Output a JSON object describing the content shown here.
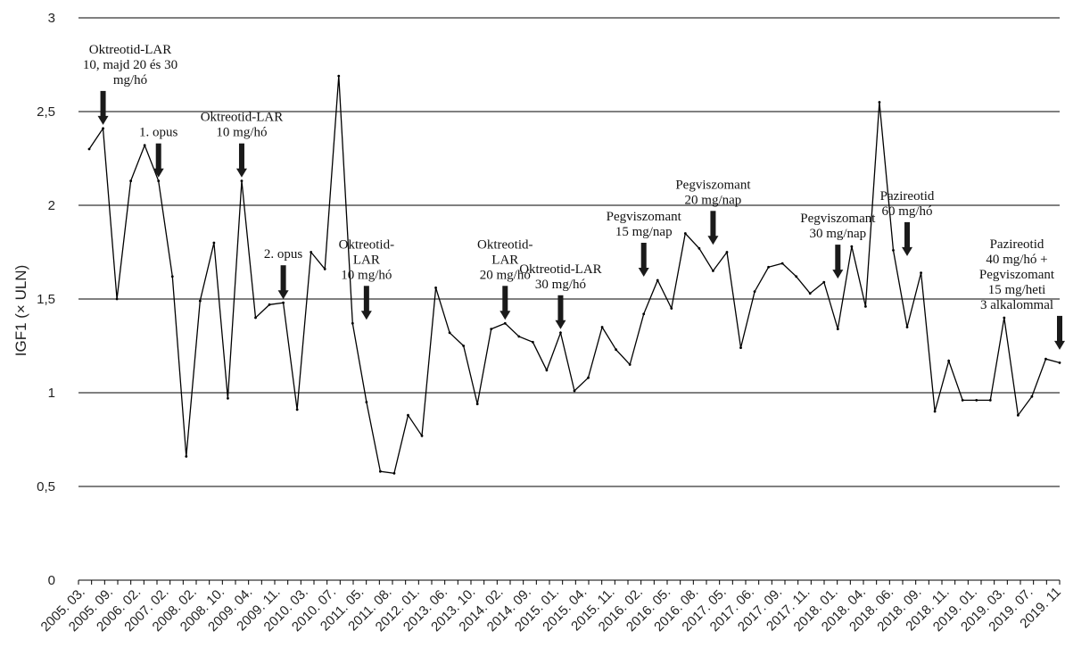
{
  "chart_data": {
    "type": "line",
    "title": "",
    "xlabel": "",
    "ylabel": "IGF1 (× ULN)",
    "ylim": [
      0,
      3
    ],
    "yticks": [
      "0",
      "0,5",
      "1",
      "1,5",
      "2",
      "2,5",
      "3"
    ],
    "grid": true,
    "legend": "none",
    "line_color": "#000000",
    "x_tick_labels": [
      "2005. 03.",
      "2005. 09.",
      "2006. 02.",
      "2007. 02.",
      "2008. 02.",
      "2008. 10.",
      "2009. 04.",
      "2009. 11.",
      "2010. 03.",
      "2010. 07.",
      "2011. 05.",
      "2011. 08.",
      "2012. 01.",
      "2013. 06.",
      "2013. 10.",
      "2014. 02.",
      "2014. 09.",
      "2015. 01.",
      "2015. 04.",
      "2015. 11.",
      "2016. 02.",
      "2016. 05.",
      "2016. 08.",
      "2017. 05.",
      "2017. 06.",
      "2017. 09.",
      "2017. 11.",
      "2018. 01.",
      "2018. 04.",
      "2018. 06.",
      "2018. 09.",
      "2018. 11.",
      "2019. 01.",
      "2019. 03.",
      "2019. 07.",
      "2019. 11"
    ],
    "values": [
      2.3,
      2.41,
      1.5,
      2.13,
      2.32,
      2.13,
      1.62,
      0.66,
      1.49,
      1.8,
      0.97,
      2.13,
      1.4,
      1.47,
      1.48,
      0.91,
      1.75,
      1.66,
      2.69,
      1.37,
      0.95,
      0.58,
      0.57,
      0.88,
      0.77,
      1.56,
      1.32,
      1.25,
      0.94,
      1.34,
      1.37,
      1.3,
      1.27,
      1.12,
      1.32,
      1.01,
      1.08,
      1.35,
      1.23,
      1.15,
      1.42,
      1.6,
      1.45,
      1.85,
      1.77,
      1.65,
      1.75,
      1.24,
      1.54,
      1.67,
      1.69,
      1.62,
      1.53,
      1.59,
      1.34,
      1.78,
      1.46,
      2.55,
      1.76,
      1.35,
      1.64,
      0.9,
      1.17,
      0.96,
      0.96,
      0.96,
      1.4,
      0.88,
      0.98,
      1.18,
      1.16
    ],
    "annotations": [
      {
        "lines": [
          "Oktreotid-LAR",
          "10, majd 20 és 30",
          "mg/hó"
        ],
        "point_index": 1,
        "y_at": 2.41
      },
      {
        "lines": [
          "1. opus"
        ],
        "point_index": 5,
        "y_at": 2.13
      },
      {
        "lines": [
          "Oktreotid-LAR",
          "10 mg/hó"
        ],
        "point_index": 11,
        "y_at": 2.13
      },
      {
        "lines": [
          "2. opus"
        ],
        "point_index": 14,
        "y_at": 1.48
      },
      {
        "lines": [
          "Oktreotid-",
          "LAR",
          "10 mg/hó"
        ],
        "point_index": 20,
        "y_at": 1.37
      },
      {
        "lines": [
          "Oktreotid-",
          "LAR",
          "20 mg/hó"
        ],
        "point_index": 30,
        "y_at": 1.37
      },
      {
        "lines": [
          "Oktreotid-LAR",
          "30 mg/hó"
        ],
        "point_index": 34,
        "y_at": 1.32
      },
      {
        "lines": [
          "Pegviszomant",
          "15 mg/nap"
        ],
        "point_index": 40,
        "y_at": 1.6
      },
      {
        "lines": [
          "Pegviszomant",
          "20 mg/nap"
        ],
        "point_index": 45,
        "y_at": 1.77
      },
      {
        "lines": [
          "Pegviszomant",
          "30 mg/nap"
        ],
        "point_index": 54,
        "y_at": 1.59
      },
      {
        "lines": [
          "Pazireotid",
          "60 mg/hó"
        ],
        "point_index": 59,
        "y_at": 1.71
      },
      {
        "lines": [
          "Pazireotid",
          "40 mg/hó +",
          "Pegviszomant",
          "15 mg/heti",
          "3 alkalommal"
        ],
        "point_index": 70,
        "y_at": 1.21
      }
    ]
  }
}
